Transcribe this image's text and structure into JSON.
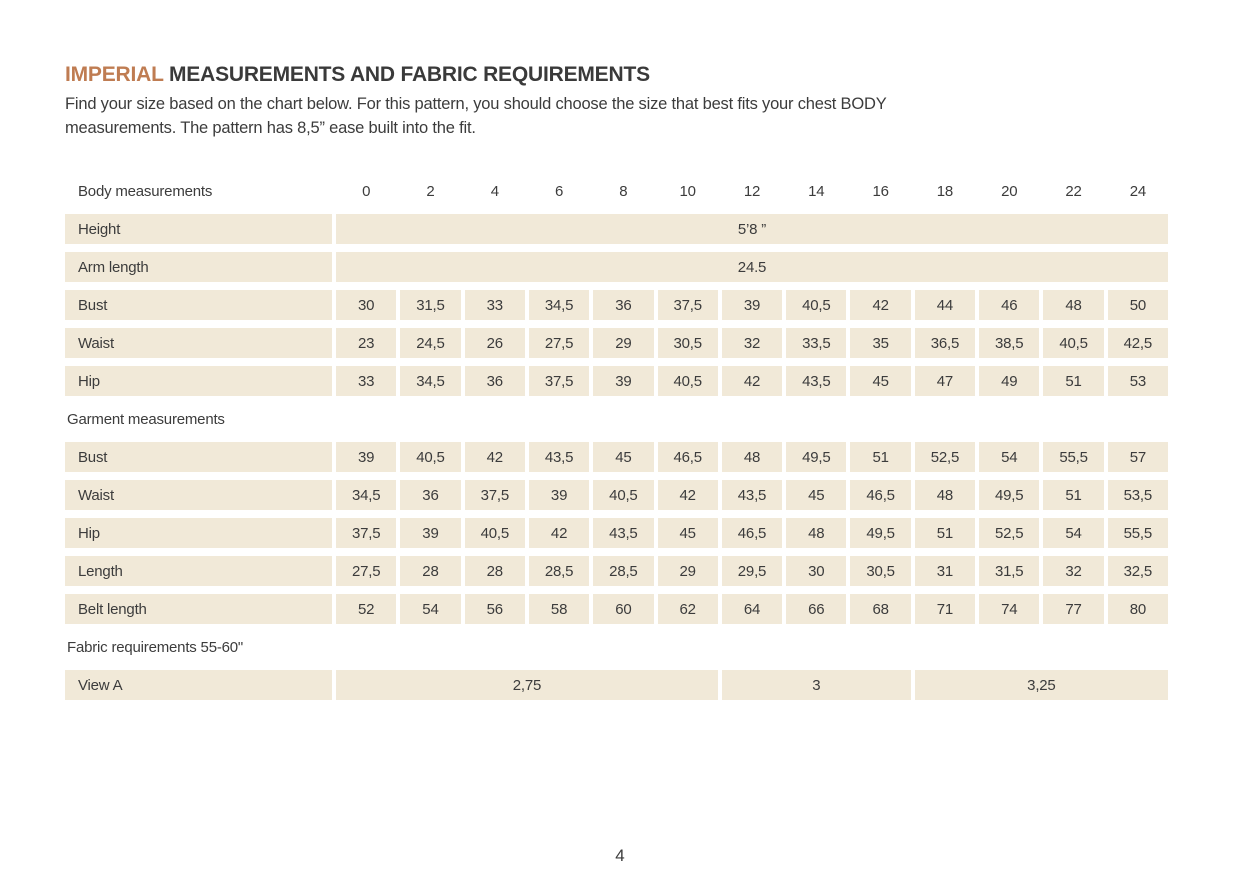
{
  "page": {
    "title_accent": "IMPERIAL",
    "title_rest": "MEASUREMENTS AND FABRIC REQUIREMENTS",
    "intro_line1": "Find your size based on the chart below. For this pattern, you should choose the size that best fits your chest BODY",
    "intro_line2": "measurements.  The pattern has 8,5” ease built into the fit.",
    "page_number": "4"
  },
  "colors": {
    "accent": "#bf7c52",
    "cell_background": "#f1e9d8",
    "text": "#3c3c3c",
    "page_background": "#ffffff"
  },
  "table": {
    "header_label": "Body measurements",
    "sizes": [
      "0",
      "2",
      "4",
      "6",
      "8",
      "10",
      "12",
      "14",
      "16",
      "18",
      "20",
      "22",
      "24"
    ],
    "body_rows": [
      {
        "label": "Height",
        "span_value": "5’8 ”"
      },
      {
        "label": "Arm length",
        "span_value": "24.5"
      },
      {
        "label": "Bust",
        "values": [
          "30",
          "31,5",
          "33",
          "34,5",
          "36",
          "37,5",
          "39",
          "40,5",
          "42",
          "44",
          "46",
          "48",
          "50"
        ]
      },
      {
        "label": "Waist",
        "values": [
          "23",
          "24,5",
          "26",
          "27,5",
          "29",
          "30,5",
          "32",
          "33,5",
          "35",
          "36,5",
          "38,5",
          "40,5",
          "42,5"
        ]
      },
      {
        "label": "Hip",
        "values": [
          "33",
          "34,5",
          "36",
          "37,5",
          "39",
          "40,5",
          "42",
          "43,5",
          "45",
          "47",
          "49",
          "51",
          "53"
        ]
      }
    ],
    "garment_header": "Garment measurements",
    "garment_rows": [
      {
        "label": "Bust",
        "values": [
          "39",
          "40,5",
          "42",
          "43,5",
          "45",
          "46,5",
          "48",
          "49,5",
          "51",
          "52,5",
          "54",
          "55,5",
          "57"
        ]
      },
      {
        "label": "Waist",
        "values": [
          "34,5",
          "36",
          "37,5",
          "39",
          "40,5",
          "42",
          "43,5",
          "45",
          "46,5",
          "48",
          "49,5",
          "51",
          "53,5"
        ]
      },
      {
        "label": "Hip",
        "values": [
          "37,5",
          "39",
          "40,5",
          "42",
          "43,5",
          "45",
          "46,5",
          "48",
          "49,5",
          "51",
          "52,5",
          "54",
          "55,5"
        ]
      },
      {
        "label": "Length",
        "values": [
          "27,5",
          "28",
          "28",
          "28,5",
          "28,5",
          "29",
          "29,5",
          "30",
          "30,5",
          "31",
          "31,5",
          "32",
          "32,5"
        ]
      },
      {
        "label": "Belt length",
        "values": [
          "52",
          "54",
          "56",
          "58",
          "60",
          "62",
          "64",
          "66",
          "68",
          "71",
          "74",
          "77",
          "80"
        ]
      }
    ],
    "fabric_header": "Fabric requirements 55-60\"",
    "fabric_rows": [
      {
        "label": "View A",
        "segments": [
          {
            "value": "2,75",
            "cols": 6
          },
          {
            "value": "3",
            "cols": 3
          },
          {
            "value": "3,25",
            "cols": 4
          }
        ]
      }
    ]
  }
}
